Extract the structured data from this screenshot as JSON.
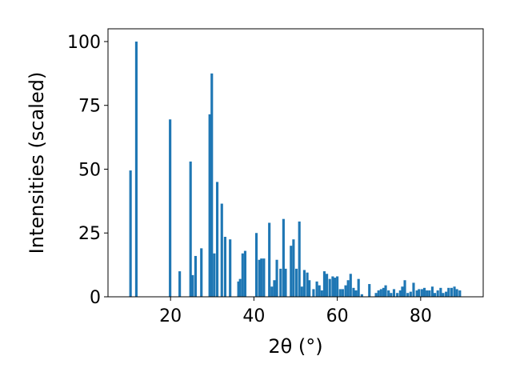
{
  "chart_data": {
    "type": "bar",
    "title": "",
    "xlabel": "2θ (°)",
    "ylabel": "Intensities (scaled)",
    "xlim": [
      5,
      95
    ],
    "ylim": [
      0,
      105
    ],
    "x_ticks": [
      20,
      40,
      60,
      80
    ],
    "y_ticks": [
      0,
      25,
      50,
      75,
      100
    ],
    "grid": false,
    "legend": "none",
    "bar_width": 0.6,
    "color": "#1f77b4",
    "x": [
      10.4,
      11.8,
      19.9,
      22.2,
      24.8,
      25.3,
      26.0,
      27.4,
      29.4,
      29.9,
      30.5,
      31.2,
      32.3,
      33.1,
      34.3,
      36.3,
      36.7,
      37.3,
      37.9,
      40.6,
      41.3,
      41.8,
      42.4,
      43.7,
      44.3,
      44.9,
      45.5,
      46.4,
      47.1,
      47.6,
      48.9,
      49.5,
      50.2,
      50.9,
      51.5,
      52.1,
      52.8,
      53.3,
      54.3,
      55.1,
      55.7,
      56.3,
      56.9,
      57.5,
      58.2,
      58.9,
      59.4,
      60.0,
      60.7,
      61.3,
      62.0,
      62.6,
      63.2,
      63.9,
      64.5,
      65.1,
      65.9,
      67.7,
      69.3,
      69.9,
      70.5,
      71.1,
      71.6,
      72.3,
      72.9,
      73.6,
      74.4,
      75.1,
      75.6,
      76.2,
      76.9,
      77.6,
      78.3,
      79.1,
      79.6,
      80.3,
      80.9,
      81.5,
      82.1,
      82.8,
      83.4,
      84.1,
      84.8,
      85.4,
      86.1,
      86.7,
      87.4,
      88.1,
      88.7,
      89.4
    ],
    "values": [
      49.5,
      100,
      69.5,
      10,
      53,
      8.5,
      16,
      19,
      71.5,
      87.5,
      17,
      45,
      36.5,
      23.5,
      22.5,
      6,
      7,
      17,
      18,
      25,
      14.5,
      15,
      15,
      29,
      4,
      6.5,
      14.5,
      11,
      30.5,
      11,
      20,
      22.5,
      11,
      29.5,
      4,
      10.5,
      9.5,
      6.5,
      3,
      6,
      4.5,
      2.5,
      10,
      9,
      7,
      8,
      7.5,
      8,
      3,
      3,
      4.5,
      6.5,
      9,
      3.5,
      2.5,
      7,
      1,
      5,
      1.5,
      2.5,
      3,
      3.5,
      4.5,
      2.5,
      1.5,
      3,
      1.5,
      2.5,
      4,
      6.5,
      1.5,
      2,
      5.5,
      2.5,
      3,
      3,
      3.5,
      2.5,
      2.5,
      4,
      1.5,
      2.5,
      3.5,
      1.5,
      2,
      3.5,
      3.5,
      4,
      3,
      2.5
    ]
  }
}
